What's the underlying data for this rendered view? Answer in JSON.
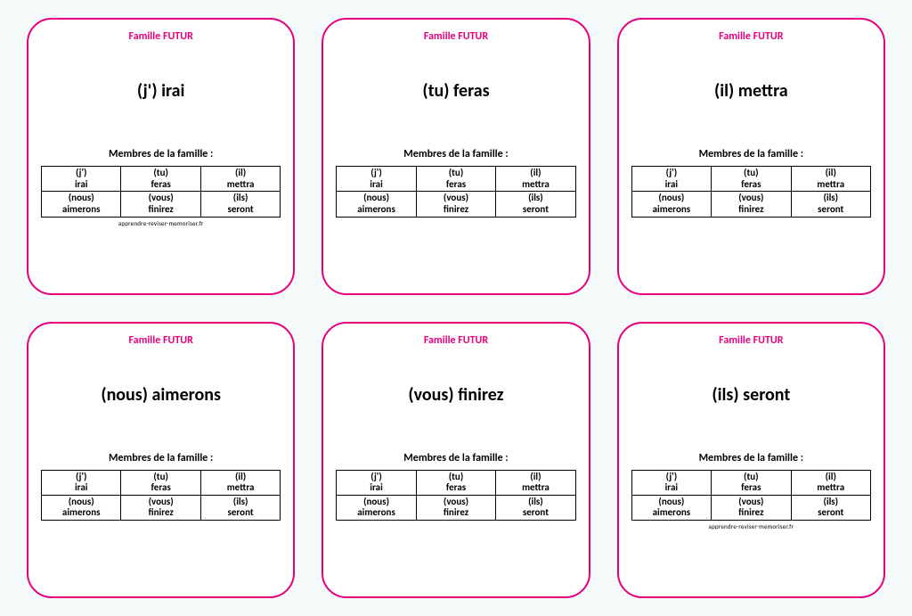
{
  "page": {
    "background_color": "#f4f9fa",
    "card_border_color": "#e6007e",
    "title_color": "#e6007e",
    "card_background": "#ffffff",
    "font_family": "Calibri, Arial, sans-serif",
    "grid_rows": 2,
    "grid_cols": 3
  },
  "common": {
    "family_title": "Famille FUTUR",
    "members_label": "Membres de la famille :",
    "footer_url": "apprendre-reviser-memoriser.fr",
    "members": [
      [
        {
          "pronoun": "(j')",
          "verb": "irai"
        },
        {
          "pronoun": "(tu)",
          "verb": "feras"
        },
        {
          "pronoun": "(il)",
          "verb": "mettra"
        }
      ],
      [
        {
          "pronoun": "(nous)",
          "verb": "aimerons"
        },
        {
          "pronoun": "(vous)",
          "verb": "finirez"
        },
        {
          "pronoun": "(ils)",
          "verb": "seront"
        }
      ]
    ]
  },
  "cards": [
    {
      "main": "(j') irai",
      "show_footer": true
    },
    {
      "main": "(tu) feras",
      "show_footer": false
    },
    {
      "main": "(il) mettra",
      "show_footer": false
    },
    {
      "main": "(nous) aimerons",
      "show_footer": false
    },
    {
      "main": "(vous) finirez",
      "show_footer": false
    },
    {
      "main": "(ils) seront",
      "show_footer": true
    }
  ]
}
